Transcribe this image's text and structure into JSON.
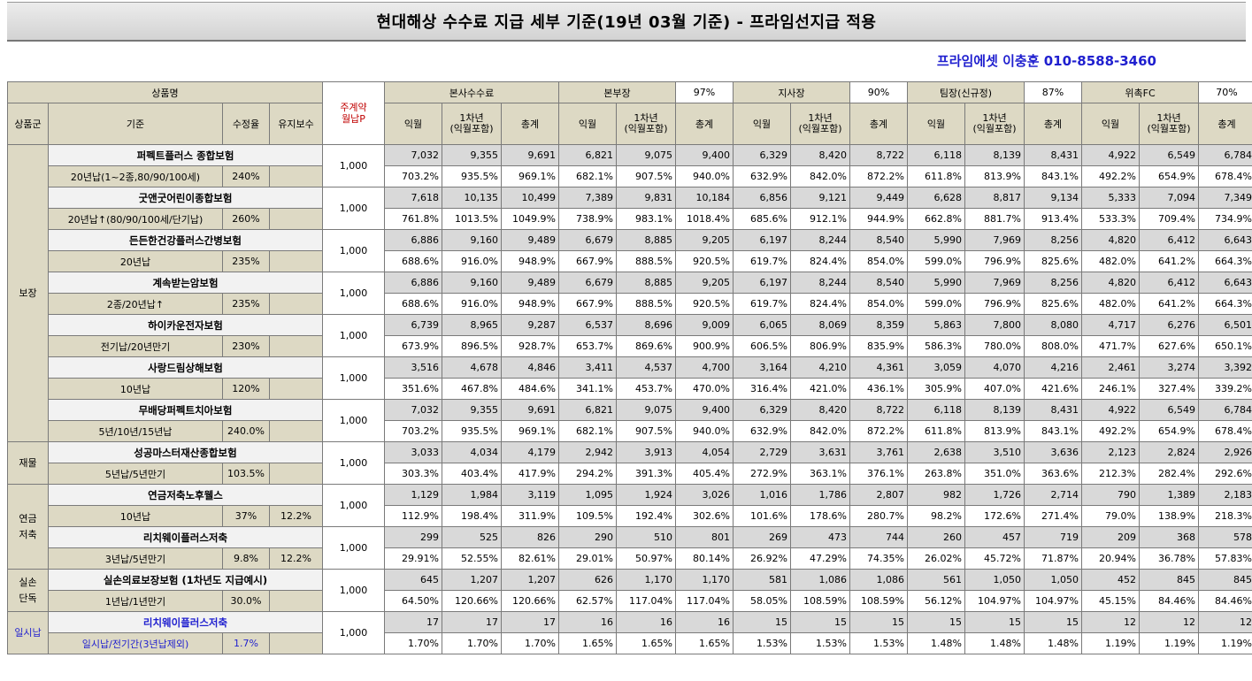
{
  "title": "현대해상 수수료 지급 세부 기준(19년 03월 기준) - 프라임선지급 적용",
  "contact": "프라임에셋 이충훈 010-8588-3460",
  "header": {
    "product_name": "상품명",
    "main_contract": "주계약\n월납P",
    "hq": "본사수수료",
    "bonbu": "본부장",
    "bonbu_pct": "97%",
    "jisa": "지사장",
    "jisa_pct": "90%",
    "team": "팀장(신규정)",
    "team_pct": "87%",
    "fc": "위촉FC",
    "fc_pct": "70%",
    "group_col": "상품군",
    "crit_col": "기준",
    "rate_col": "수정율",
    "maint_col": "유지보수",
    "m1": "익월",
    "y1": "1차년\n(익월포함)",
    "total": "총계"
  },
  "groups": [
    {
      "name": "보장",
      "rows": 7,
      "blue": false
    },
    {
      "name": "재물",
      "rows": 1,
      "blue": false
    },
    {
      "name": "연금\n저축",
      "rows": 2,
      "blue": false
    },
    {
      "name": "실손\n단독",
      "rows": 1,
      "blue": false
    },
    {
      "name": "일시납",
      "rows": 1,
      "blue": true
    }
  ],
  "products": [
    {
      "name": "퍼펙트플러스 종합보험",
      "crit": "20년납(1~2종,80/90/100세)",
      "rate": "240%",
      "maint": "",
      "prem": "1,000",
      "nums": [
        "7,032",
        "9,355",
        "9,691",
        "6,821",
        "9,075",
        "9,400",
        "6,329",
        "8,420",
        "8,722",
        "6,118",
        "8,139",
        "8,431",
        "4,922",
        "6,549",
        "6,784"
      ],
      "pcts": [
        "703.2%",
        "935.5%",
        "969.1%",
        "682.1%",
        "907.5%",
        "940.0%",
        "632.9%",
        "842.0%",
        "872.2%",
        "611.8%",
        "813.9%",
        "843.1%",
        "492.2%",
        "654.9%",
        "678.4%"
      ]
    },
    {
      "name": "굿앤굿어린이종합보험",
      "crit": "20년납↑(80/90/100세/단기납)",
      "rate": "260%",
      "maint": "",
      "prem": "1,000",
      "nums": [
        "7,618",
        "10,135",
        "10,499",
        "7,389",
        "9,831",
        "10,184",
        "6,856",
        "9,121",
        "9,449",
        "6,628",
        "8,817",
        "9,134",
        "5,333",
        "7,094",
        "7,349"
      ],
      "pcts": [
        "761.8%",
        "1013.5%",
        "1049.9%",
        "738.9%",
        "983.1%",
        "1018.4%",
        "685.6%",
        "912.1%",
        "944.9%",
        "662.8%",
        "881.7%",
        "913.4%",
        "533.3%",
        "709.4%",
        "734.9%"
      ]
    },
    {
      "name": "든든한건강플러스간병보험",
      "crit": "20년납",
      "rate": "235%",
      "maint": "",
      "prem": "1,000",
      "nums": [
        "6,886",
        "9,160",
        "9,489",
        "6,679",
        "8,885",
        "9,205",
        "6,197",
        "8,244",
        "8,540",
        "5,990",
        "7,969",
        "8,256",
        "4,820",
        "6,412",
        "6,643"
      ],
      "pcts": [
        "688.6%",
        "916.0%",
        "948.9%",
        "667.9%",
        "888.5%",
        "920.5%",
        "619.7%",
        "824.4%",
        "854.0%",
        "599.0%",
        "796.9%",
        "825.6%",
        "482.0%",
        "641.2%",
        "664.3%"
      ]
    },
    {
      "name": "계속받는암보험",
      "crit": "2종/20년납↑",
      "rate": "235%",
      "maint": "",
      "prem": "1,000",
      "nums": [
        "6,886",
        "9,160",
        "9,489",
        "6,679",
        "8,885",
        "9,205",
        "6,197",
        "8,244",
        "8,540",
        "5,990",
        "7,969",
        "8,256",
        "4,820",
        "6,412",
        "6,643"
      ],
      "pcts": [
        "688.6%",
        "916.0%",
        "948.9%",
        "667.9%",
        "888.5%",
        "920.5%",
        "619.7%",
        "824.4%",
        "854.0%",
        "599.0%",
        "796.9%",
        "825.6%",
        "482.0%",
        "641.2%",
        "664.3%"
      ]
    },
    {
      "name": "하이카운전자보험",
      "crit": "전기납/20년만기",
      "rate": "230%",
      "maint": "",
      "prem": "1,000",
      "nums": [
        "6,739",
        "8,965",
        "9,287",
        "6,537",
        "8,696",
        "9,009",
        "6,065",
        "8,069",
        "8,359",
        "5,863",
        "7,800",
        "8,080",
        "4,717",
        "6,276",
        "6,501"
      ],
      "pcts": [
        "673.9%",
        "896.5%",
        "928.7%",
        "653.7%",
        "869.6%",
        "900.9%",
        "606.5%",
        "806.9%",
        "835.9%",
        "586.3%",
        "780.0%",
        "808.0%",
        "471.7%",
        "627.6%",
        "650.1%"
      ]
    },
    {
      "name": "사랑드림상해보험",
      "crit": "10년납",
      "rate": "120%",
      "maint": "",
      "prem": "1,000",
      "nums": [
        "3,516",
        "4,678",
        "4,846",
        "3,411",
        "4,537",
        "4,700",
        "3,164",
        "4,210",
        "4,361",
        "3,059",
        "4,070",
        "4,216",
        "2,461",
        "3,274",
        "3,392"
      ],
      "pcts": [
        "351.6%",
        "467.8%",
        "484.6%",
        "341.1%",
        "453.7%",
        "470.0%",
        "316.4%",
        "421.0%",
        "436.1%",
        "305.9%",
        "407.0%",
        "421.6%",
        "246.1%",
        "327.4%",
        "339.2%"
      ]
    },
    {
      "name": "무배당퍼펙트치아보험",
      "crit": "5년/10년/15년납",
      "rate": "240.0%",
      "maint": "",
      "prem": "1,000",
      "nums": [
        "7,032",
        "9,355",
        "9,691",
        "6,821",
        "9,075",
        "9,400",
        "6,329",
        "8,420",
        "8,722",
        "6,118",
        "8,139",
        "8,431",
        "4,922",
        "6,549",
        "6,784"
      ],
      "pcts": [
        "703.2%",
        "935.5%",
        "969.1%",
        "682.1%",
        "907.5%",
        "940.0%",
        "632.9%",
        "842.0%",
        "872.2%",
        "611.8%",
        "813.9%",
        "843.1%",
        "492.2%",
        "654.9%",
        "678.4%"
      ]
    },
    {
      "name": "성공마스터재산종합보험",
      "crit": "5년납/5년만기",
      "rate": "103.5%",
      "maint": "",
      "prem": "1,000",
      "nums": [
        "3,033",
        "4,034",
        "4,179",
        "2,942",
        "3,913",
        "4,054",
        "2,729",
        "3,631",
        "3,761",
        "2,638",
        "3,510",
        "3,636",
        "2,123",
        "2,824",
        "2,926"
      ],
      "pcts": [
        "303.3%",
        "403.4%",
        "417.9%",
        "294.2%",
        "391.3%",
        "405.4%",
        "272.9%",
        "363.1%",
        "376.1%",
        "263.8%",
        "351.0%",
        "363.6%",
        "212.3%",
        "282.4%",
        "292.6%"
      ]
    },
    {
      "name": "연금저축노후웰스",
      "crit": "10년납",
      "rate": "37%",
      "maint": "12.2%",
      "prem": "1,000",
      "nums": [
        "1,129",
        "1,984",
        "3,119",
        "1,095",
        "1,924",
        "3,026",
        "1,016",
        "1,786",
        "2,807",
        "982",
        "1,726",
        "2,714",
        "790",
        "1,389",
        "2,183"
      ],
      "pcts": [
        "112.9%",
        "198.4%",
        "311.9%",
        "109.5%",
        "192.4%",
        "302.6%",
        "101.6%",
        "178.6%",
        "280.7%",
        "98.2%",
        "172.6%",
        "271.4%",
        "79.0%",
        "138.9%",
        "218.3%"
      ]
    },
    {
      "name": "리치웨이플러스저축",
      "crit": "3년납/5년만기",
      "rate": "9.8%",
      "maint": "12.2%",
      "prem": "1,000",
      "nums": [
        "299",
        "525",
        "826",
        "290",
        "510",
        "801",
        "269",
        "473",
        "744",
        "260",
        "457",
        "719",
        "209",
        "368",
        "578"
      ],
      "pcts": [
        "29.91%",
        "52.55%",
        "82.61%",
        "29.01%",
        "50.97%",
        "80.14%",
        "26.92%",
        "47.29%",
        "74.35%",
        "26.02%",
        "45.72%",
        "71.87%",
        "20.94%",
        "36.78%",
        "57.83%"
      ]
    },
    {
      "name": "실손의료보장보험 (1차년도 지급예시)",
      "crit": "1년납/1년만기",
      "rate": "30.0%",
      "maint": "",
      "prem": "1,000",
      "nums": [
        "645",
        "1,207",
        "1,207",
        "626",
        "1,170",
        "1,170",
        "581",
        "1,086",
        "1,086",
        "561",
        "1,050",
        "1,050",
        "452",
        "845",
        "845"
      ],
      "pcts": [
        "64.50%",
        "120.66%",
        "120.66%",
        "62.57%",
        "117.04%",
        "117.04%",
        "58.05%",
        "108.59%",
        "108.59%",
        "56.12%",
        "104.97%",
        "104.97%",
        "45.15%",
        "84.46%",
        "84.46%"
      ]
    },
    {
      "name": "리치웨이플러스저축",
      "crit": "일시납/전기간(3년납제외)",
      "rate": "1.7%",
      "maint": "",
      "prem": "1,000",
      "blue": true,
      "nums": [
        "17",
        "17",
        "17",
        "16",
        "16",
        "16",
        "15",
        "15",
        "15",
        "15",
        "15",
        "15",
        "12",
        "12",
        "12"
      ],
      "pcts": [
        "1.70%",
        "1.70%",
        "1.70%",
        "1.65%",
        "1.65%",
        "1.65%",
        "1.53%",
        "1.53%",
        "1.53%",
        "1.48%",
        "1.48%",
        "1.48%",
        "1.19%",
        "1.19%",
        "1.19%"
      ]
    }
  ],
  "colors": {
    "header_bg": "#ddd9c4",
    "number_bg": "#d9d9d9",
    "red": "#c00000",
    "blue": "#1f1fcf"
  }
}
